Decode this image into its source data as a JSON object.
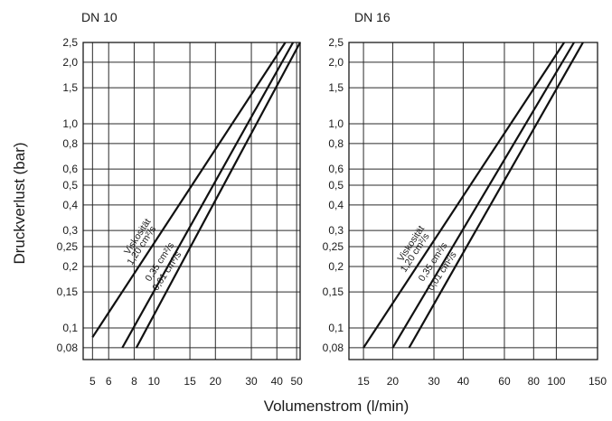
{
  "ylabel": "Druckverlust (bar)",
  "xlabel": "Volumenstrom (l/min)",
  "chart_data": [
    {
      "type": "line",
      "title": "DN 10",
      "x_scale": "log",
      "y_scale": "log",
      "xlim": [
        4.5,
        52
      ],
      "ylim": [
        0.07,
        2.5
      ],
      "x_ticks": [
        5,
        6,
        8,
        10,
        15,
        20,
        30,
        40,
        50
      ],
      "y_ticks": [
        0.08,
        0.1,
        0.15,
        0.2,
        0.25,
        0.3,
        0.4,
        0.5,
        0.6,
        0.8,
        1.0,
        1.5,
        2.0,
        2.5
      ],
      "y_tick_labels": [
        "0,08",
        "0,1",
        "0,15",
        "0,2",
        "0,25",
        "0,3",
        "0,4",
        "0,5",
        "0,6",
        "0,8",
        "1,0",
        "1,5",
        "2,0",
        "2,5"
      ],
      "annotation": "Viskosität",
      "series": [
        {
          "name": "1,20 cm²/s",
          "x": [
            5,
            44
          ],
          "y": [
            0.09,
            2.5
          ]
        },
        {
          "name": "0,35 cm²/s",
          "x": [
            7,
            48
          ],
          "y": [
            0.08,
            2.5
          ]
        },
        {
          "name": "0,01 cm²/s",
          "x": [
            8.2,
            52
          ],
          "y": [
            0.08,
            2.5
          ]
        }
      ]
    },
    {
      "type": "line",
      "title": "DN 16",
      "x_scale": "log",
      "y_scale": "log",
      "xlim": [
        13,
        150
      ],
      "ylim": [
        0.07,
        2.5
      ],
      "x_ticks": [
        15,
        20,
        30,
        40,
        60,
        80,
        100,
        150
      ],
      "y_ticks": [
        0.08,
        0.1,
        0.15,
        0.2,
        0.25,
        0.3,
        0.4,
        0.5,
        0.6,
        0.8,
        1.0,
        1.5,
        2.0,
        2.5
      ],
      "y_tick_labels": [
        "0,08",
        "0,1",
        "0,15",
        "0,2",
        "0,25",
        "0,3",
        "0,4",
        "0,5",
        "0,6",
        "0,8",
        "1,0",
        "1,5",
        "2,0",
        "2,5"
      ],
      "annotation": "Viskosität",
      "series": [
        {
          "name": "1,20 cm²/s",
          "x": [
            15,
            108
          ],
          "y": [
            0.08,
            2.5
          ]
        },
        {
          "name": "0,35 cm²/s",
          "x": [
            20,
            119
          ],
          "y": [
            0.08,
            2.5
          ]
        },
        {
          "name": "0,01 cm²/s",
          "x": [
            23.5,
            130
          ],
          "y": [
            0.08,
            2.5
          ]
        }
      ]
    }
  ]
}
